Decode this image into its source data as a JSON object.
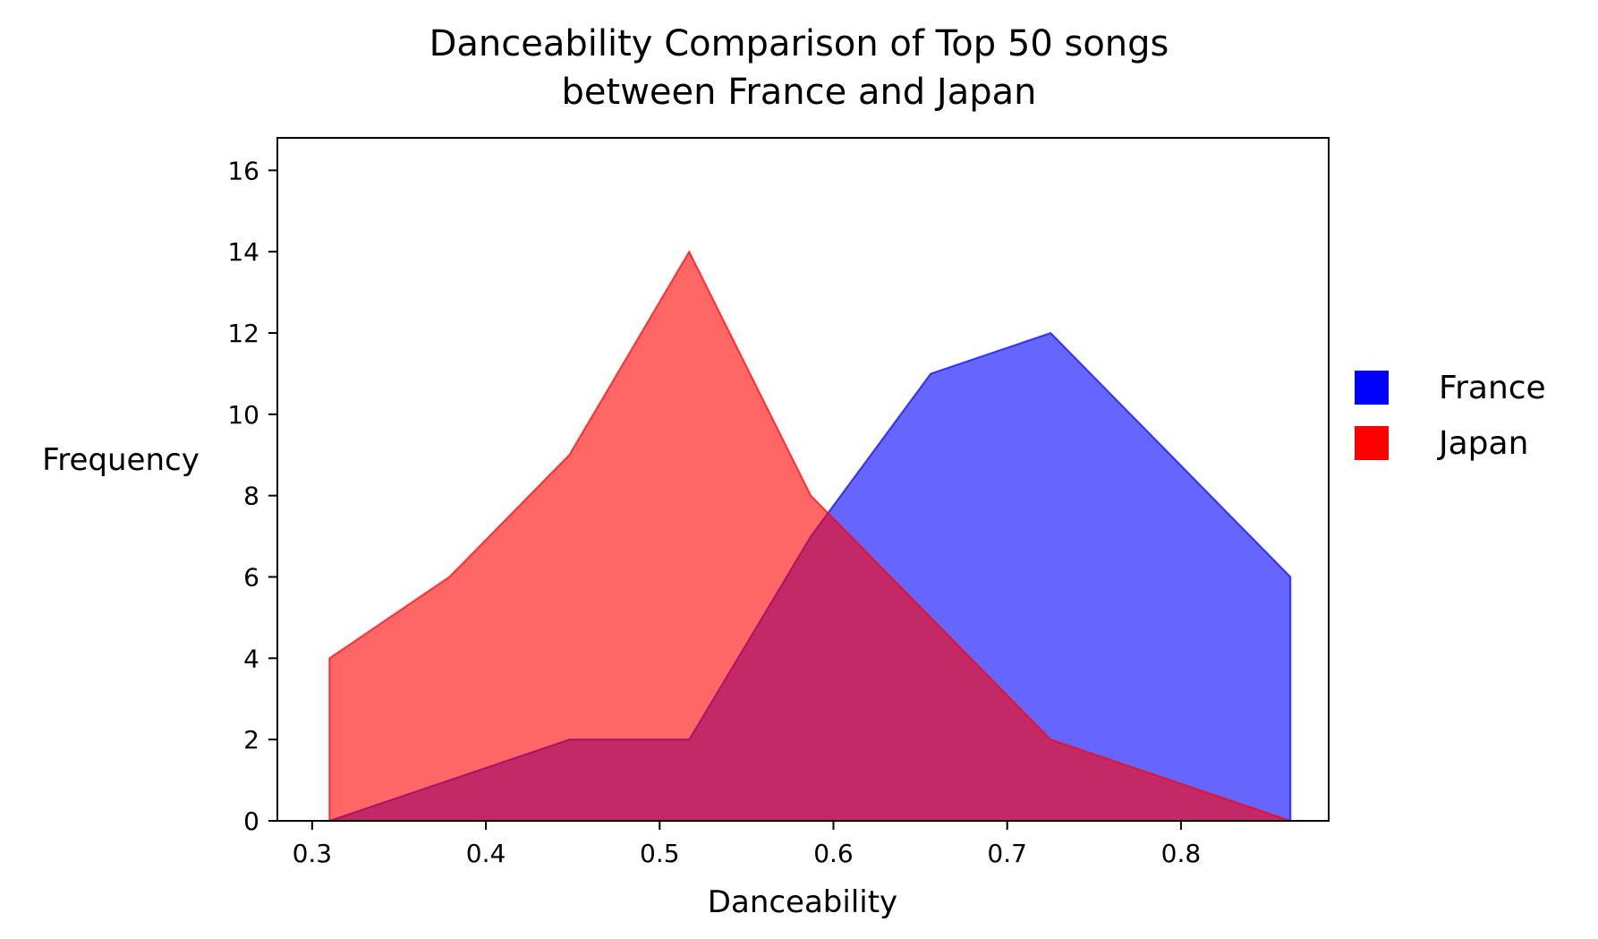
{
  "chart_data": {
    "type": "area",
    "title_lines": [
      "Danceability Comparison of Top 50 songs",
      "between France and Japan"
    ],
    "xlabel": "Danceability",
    "ylabel": "Frequency",
    "xlim": [
      0.28,
      0.885
    ],
    "ylim": [
      0,
      16.8
    ],
    "x_ticks": [
      0.3,
      0.4,
      0.5,
      0.6,
      0.7,
      0.8
    ],
    "x_tick_labels": [
      "0.3",
      "0.4",
      "0.5",
      "0.6",
      "0.7",
      "0.8"
    ],
    "y_ticks": [
      0,
      2,
      4,
      6,
      8,
      10,
      12,
      14,
      16
    ],
    "y_tick_labels": [
      "0",
      "2",
      "4",
      "6",
      "8",
      "10",
      "12",
      "14",
      "16"
    ],
    "grid": false,
    "legend_position": "right",
    "series": [
      {
        "name": "France",
        "color": "#0000ff",
        "fill_opacity": 0.6,
        "x": [
          0.31,
          0.379,
          0.448,
          0.517,
          0.587,
          0.656,
          0.725,
          0.794,
          0.863,
          0.863
        ],
        "y": [
          0,
          1,
          2,
          2,
          7,
          11,
          12,
          9,
          6,
          0
        ]
      },
      {
        "name": "Japan",
        "color": "#ff0000",
        "fill_opacity": 0.6,
        "x": [
          0.31,
          0.31,
          0.379,
          0.448,
          0.517,
          0.587,
          0.656,
          0.725,
          0.794,
          0.863
        ],
        "y": [
          0,
          4,
          6,
          9,
          14,
          8,
          5,
          2,
          1,
          0
        ]
      }
    ]
  }
}
